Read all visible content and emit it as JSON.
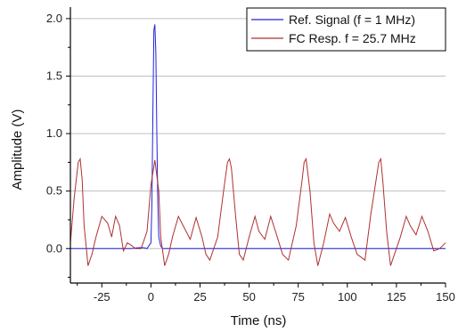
{
  "chart_data": {
    "type": "line",
    "title": "",
    "xlabel": "Time (ns)",
    "ylabel": "Amplitude (V)",
    "xlim": [
      -41,
      150
    ],
    "ylim": [
      -0.3,
      2.1
    ],
    "xticks": [
      -25,
      0,
      25,
      50,
      75,
      100,
      125,
      150
    ],
    "xtick_labels": [
      "-25",
      "0",
      "25",
      "50",
      "75",
      "100",
      "125",
      "150"
    ],
    "yticks": [
      0.0,
      0.5,
      1.0,
      1.5,
      2.0
    ],
    "ytick_labels": [
      "0.0",
      "0.5",
      "1.0",
      "1.5",
      "2.0"
    ],
    "grid": "horizontal",
    "legend_position": "top-right",
    "series": [
      {
        "name": "Ref. Signal (f = 1 MHz)",
        "color": "#2222dd",
        "x": [
          -41,
          -10,
          -5,
          -2,
          0,
          0.5,
          1,
          1.5,
          2,
          2.5,
          3,
          3.5,
          4,
          5,
          6,
          8,
          150
        ],
        "y": [
          0.0,
          0.0,
          0.01,
          0.0,
          0.05,
          0.4,
          1.2,
          1.9,
          1.95,
          1.7,
          1.0,
          0.4,
          0.1,
          0.02,
          0.0,
          0.0,
          0.0
        ]
      },
      {
        "name": "FC Resp. f = 25.7 MHz",
        "color": "#b03030",
        "x": [
          -41,
          -39,
          -37,
          -36,
          -35,
          -34,
          -32,
          -30,
          -28,
          -25,
          -22,
          -20,
          -18,
          -16,
          -14,
          -12,
          -10,
          -8,
          -5,
          -2,
          0,
          2,
          4,
          5,
          7,
          9,
          11,
          14,
          17,
          20,
          23,
          26,
          28,
          30,
          34,
          37,
          39,
          40,
          41,
          43,
          45,
          47,
          50,
          53,
          55,
          58,
          61,
          64,
          67,
          70,
          74,
          77,
          78,
          79,
          81,
          83,
          85,
          88,
          91,
          93,
          96,
          99,
          102,
          105,
          109,
          112,
          116,
          117,
          118,
          120,
          122,
          124,
          127,
          130,
          132,
          135,
          138,
          141,
          144,
          147,
          150
        ],
        "y": [
          0.05,
          0.45,
          0.75,
          0.78,
          0.6,
          0.2,
          -0.15,
          -0.05,
          0.1,
          0.28,
          0.22,
          0.1,
          0.28,
          0.2,
          -0.02,
          0.05,
          0.03,
          0.0,
          0.0,
          0.15,
          0.55,
          0.77,
          0.5,
          0.1,
          -0.15,
          -0.05,
          0.1,
          0.28,
          0.18,
          0.08,
          0.27,
          0.1,
          -0.05,
          -0.1,
          0.1,
          0.5,
          0.75,
          0.78,
          0.7,
          0.3,
          -0.05,
          -0.1,
          0.1,
          0.28,
          0.15,
          0.08,
          0.28,
          0.12,
          -0.05,
          -0.1,
          0.2,
          0.6,
          0.75,
          0.78,
          0.5,
          0.05,
          -0.15,
          0.05,
          0.3,
          0.22,
          0.15,
          0.27,
          0.1,
          -0.05,
          -0.1,
          0.3,
          0.75,
          0.78,
          0.6,
          0.15,
          -0.15,
          -0.05,
          0.1,
          0.28,
          0.2,
          0.12,
          0.28,
          0.15,
          -0.02,
          0.0,
          0.05
        ]
      }
    ]
  }
}
